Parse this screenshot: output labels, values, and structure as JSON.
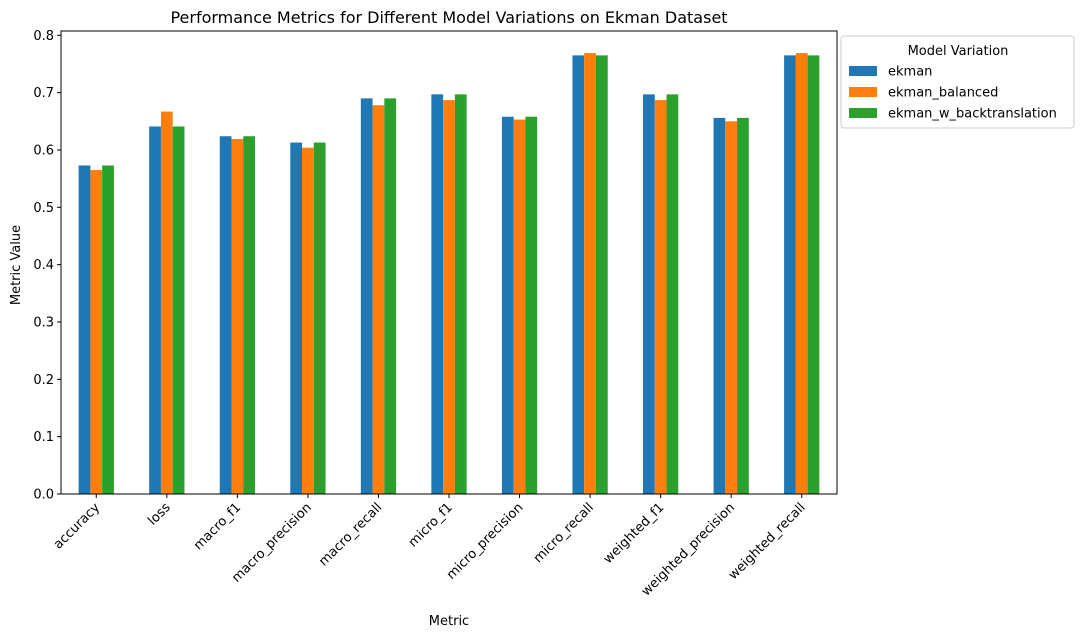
{
  "chart_data": {
    "type": "bar",
    "title": "Performance Metrics for Different Model Variations on Ekman Dataset",
    "xlabel": "Metric",
    "ylabel": "Metric Value",
    "categories": [
      "accuracy",
      "loss",
      "macro_f1",
      "macro_precision",
      "macro_recall",
      "micro_f1",
      "micro_precision",
      "micro_recall",
      "weighted_f1",
      "weighted_precision",
      "weighted_recall"
    ],
    "series": [
      {
        "name": "ekman",
        "color": "#1f77b4",
        "values": [
          0.573,
          0.641,
          0.624,
          0.613,
          0.69,
          0.697,
          0.658,
          0.765,
          0.697,
          0.656,
          0.765
        ]
      },
      {
        "name": "ekman_balanced",
        "color": "#ff7f0e",
        "values": [
          0.565,
          0.667,
          0.619,
          0.604,
          0.678,
          0.687,
          0.653,
          0.769,
          0.687,
          0.65,
          0.769
        ]
      },
      {
        "name": "ekman_w_backtranslation",
        "color": "#2ca02c",
        "values": [
          0.573,
          0.641,
          0.624,
          0.613,
          0.69,
          0.697,
          0.658,
          0.765,
          0.697,
          0.656,
          0.765
        ]
      }
    ],
    "ylim": [
      0,
      0.8
    ],
    "yticks": [
      "0.0",
      "0.1",
      "0.2",
      "0.3",
      "0.4",
      "0.5",
      "0.6",
      "0.7",
      "0.8"
    ],
    "grid": false,
    "legend": {
      "title": "Model Variation",
      "placement": "outside-upper-right"
    }
  }
}
